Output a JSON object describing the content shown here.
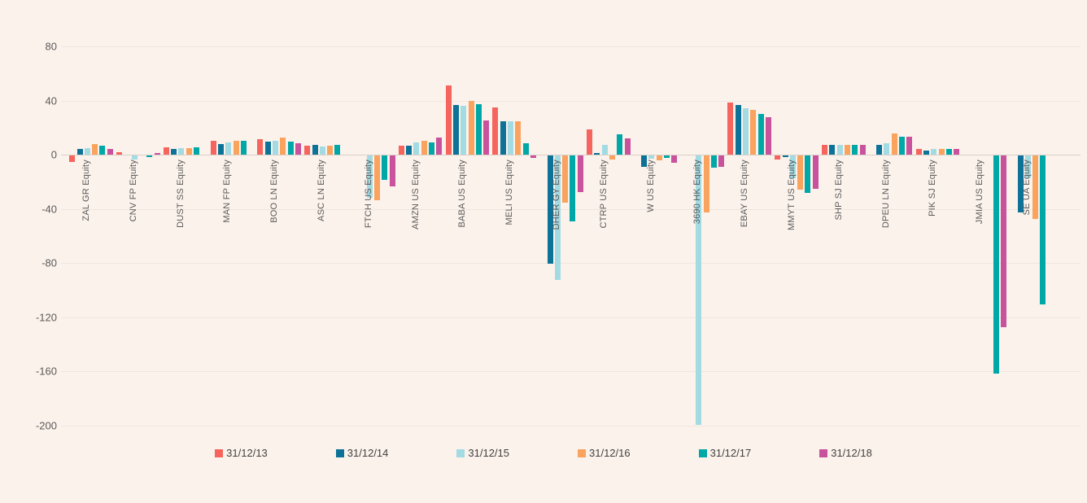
{
  "chart_data": {
    "type": "bar",
    "title": "",
    "xlabel": "",
    "ylabel": "",
    "background_color": "#FCF2EC",
    "grid": true,
    "legend_position": "bottom",
    "y_ticks": [
      80,
      40,
      0,
      -40,
      -80,
      -120,
      -160,
      -200
    ],
    "ylim": [
      -215,
      95
    ],
    "categories": [
      "ZAL GR Equity",
      "CNV FP Equity",
      "DUST SS Equity",
      "MAN FP Equity",
      "BOO LN Equity",
      "ASC LN Equity",
      "FTCH US Equity",
      "AMZN US Equity",
      "BABA US Equity",
      "MELI US Equity",
      "DHER GY Equity",
      "CTRP US Equity",
      "W US Equity",
      "3690 HK Equity",
      "EBAY US Equity",
      "MMYT US Equity",
      "SHP SJ Equity",
      "DPEU LN Equity",
      "PIK SJ Equity",
      "JMIA US Equity",
      "SE UA Equity"
    ],
    "series": [
      {
        "name": "31/12/13",
        "color": "#F5655D",
        "values": [
          -5,
          2,
          5.5,
          10.5,
          11.5,
          6.5,
          null,
          6.5,
          51,
          35,
          null,
          18.5,
          null,
          null,
          38.5,
          -3,
          7.5,
          null,
          4,
          null,
          null
        ]
      },
      {
        "name": "31/12/14",
        "color": "#0D7297",
        "values": [
          4.5,
          null,
          4,
          8,
          9.5,
          7,
          null,
          6.5,
          36.5,
          24.5,
          -80,
          1.5,
          -8.5,
          null,
          36.5,
          -1.5,
          7,
          7,
          3,
          null,
          -42
        ]
      },
      {
        "name": "31/12/15",
        "color": "#A3DBE3",
        "values": [
          5,
          -3,
          5,
          9,
          10,
          6,
          -31,
          9,
          36,
          24.5,
          -92,
          7.5,
          -2.5,
          -199,
          34.5,
          -17,
          7,
          8.5,
          4,
          null,
          -17
        ]
      },
      {
        "name": "31/12/16",
        "color": "#F9A35F",
        "values": [
          8,
          null,
          5,
          10.5,
          12.5,
          6.5,
          -33,
          10,
          40,
          24.5,
          -35,
          -3,
          -3.5,
          -42,
          33,
          -25,
          7.5,
          15.5,
          4,
          null,
          -47
        ]
      },
      {
        "name": "31/12/17",
        "color": "#00A7A7",
        "values": [
          6.5,
          -1.5,
          5.5,
          10.5,
          9.5,
          7,
          -18,
          9,
          37.5,
          8.5,
          -49,
          15,
          -2,
          -9,
          30,
          -27.5,
          7.5,
          13,
          4,
          -161,
          -110
        ]
      },
      {
        "name": "31/12/18",
        "color": "#C9529D",
        "values": [
          4,
          1,
          null,
          null,
          8.5,
          null,
          -23,
          12.5,
          25,
          -2,
          -27,
          12,
          -5.5,
          -8.5,
          27.5,
          -24.5,
          7,
          13,
          4,
          -127,
          null
        ]
      }
    ]
  }
}
